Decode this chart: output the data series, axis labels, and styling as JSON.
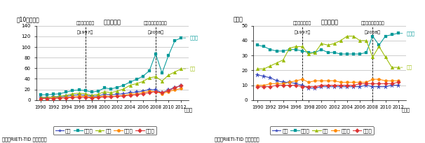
{
  "years": [
    1990,
    1991,
    1992,
    1993,
    1994,
    1995,
    1996,
    1997,
    1998,
    1999,
    2000,
    2001,
    2002,
    2003,
    2004,
    2005,
    2006,
    2007,
    2008,
    2009,
    2010,
    2011,
    2012
  ],
  "left_title": "（貿易額）",
  "left_ylabel": "（10億ドル）",
  "right_title": "（シェア）",
  "right_ylabel": "（％）",
  "asia_crisis_label_l1": "アジア通貨危機",
  "asia_crisis_label_l2": "（1997）",
  "lehman_label_l1": "リーマン・ショック",
  "lehman_label_l2": "（2008）",
  "legend_labels": [
    "素材",
    "加工品",
    "部品",
    "資本財",
    "消費財"
  ],
  "colors": [
    "#3344bb",
    "#009999",
    "#99bb00",
    "#ff8800",
    "#dd3333"
  ],
  "left_ylim": [
    0,
    140
  ],
  "left_yticks": [
    0,
    20,
    40,
    60,
    80,
    100,
    120,
    140
  ],
  "right_ylim": [
    0,
    50
  ],
  "right_yticks": [
    0,
    10,
    20,
    30,
    40,
    50
  ],
  "source": "資料：RIETI-TID から作成。",
  "label_kakohin": "加工品",
  "label_buhin": "部品",
  "left_data_sozai": [
    5,
    5,
    6,
    6,
    7,
    9,
    10,
    9,
    7,
    8,
    11,
    10,
    11,
    12,
    14,
    15,
    17,
    20,
    19,
    14,
    19,
    24,
    27
  ],
  "left_data_kakohin": [
    10,
    10,
    11,
    12,
    15,
    18,
    19,
    18,
    15,
    17,
    23,
    21,
    24,
    28,
    34,
    39,
    45,
    55,
    87,
    51,
    84,
    112,
    117
  ],
  "left_data_buhin": [
    5,
    5,
    6,
    7,
    9,
    12,
    13,
    12,
    9,
    11,
    16,
    14,
    17,
    21,
    28,
    31,
    35,
    42,
    44,
    36,
    47,
    53,
    59
  ],
  "left_data_shihon": [
    3,
    3,
    4,
    4,
    5,
    6,
    7,
    7,
    5,
    6,
    8,
    7,
    8,
    9,
    11,
    12,
    14,
    17,
    16,
    12,
    16,
    19,
    22
  ],
  "left_data_shouhizai": [
    3,
    3,
    3,
    4,
    4,
    5,
    5,
    5,
    4,
    5,
    6,
    6,
    7,
    8,
    9,
    10,
    12,
    14,
    16,
    14,
    18,
    23,
    28
  ],
  "right_data_sozai": [
    17,
    16,
    15,
    13,
    12,
    12,
    11,
    10,
    8,
    8,
    9,
    9,
    9,
    9,
    9,
    9,
    9,
    10,
    9,
    9,
    9,
    10,
    10
  ],
  "right_data_kakohin": [
    37,
    36,
    34,
    33,
    33,
    34,
    34,
    33,
    32,
    32,
    34,
    32,
    32,
    31,
    31,
    31,
    31,
    32,
    43,
    37,
    43,
    44,
    45
  ],
  "right_data_buhin": [
    21,
    21,
    23,
    25,
    27,
    35,
    36,
    36,
    31,
    32,
    38,
    37,
    38,
    40,
    43,
    43,
    40,
    40,
    29,
    36,
    29,
    22,
    22
  ],
  "right_data_shihon": [
    10,
    10,
    11,
    11,
    11,
    12,
    13,
    14,
    12,
    13,
    13,
    13,
    13,
    12,
    12,
    12,
    12,
    12,
    14,
    14,
    13,
    13,
    13
  ],
  "right_data_shouhizai": [
    9,
    9,
    9,
    10,
    10,
    10,
    10,
    9,
    9,
    9,
    10,
    10,
    10,
    10,
    10,
    10,
    11,
    11,
    11,
    11,
    11,
    11,
    12
  ]
}
